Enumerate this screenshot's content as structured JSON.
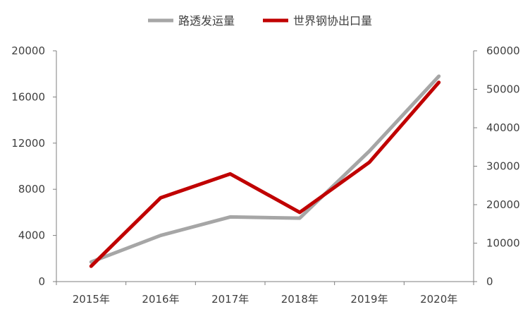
{
  "chart_data": {
    "type": "line",
    "categories": [
      "2015年",
      "2016年",
      "2017年",
      "2018年",
      "2019年",
      "2020年"
    ],
    "series": [
      {
        "name": "路透发运量",
        "axis": "left",
        "color": "#a6a6a6",
        "values": [
          1700,
          4000,
          5600,
          5500,
          11300,
          17800
        ]
      },
      {
        "name": "世界钢协出口量",
        "axis": "right",
        "color": "#c00000",
        "values": [
          4000,
          21800,
          28000,
          18000,
          31000,
          51800
        ]
      }
    ],
    "y_left": {
      "min": 0,
      "max": 20000,
      "ticks": [
        "0",
        "4000",
        "8000",
        "12000",
        "16000",
        "20000"
      ]
    },
    "y_right": {
      "min": 0,
      "max": 60000,
      "ticks": [
        "0",
        "10000",
        "20000",
        "30000",
        "40000",
        "50000",
        "60000"
      ]
    },
    "grid": false,
    "legend_position": "top-center"
  }
}
